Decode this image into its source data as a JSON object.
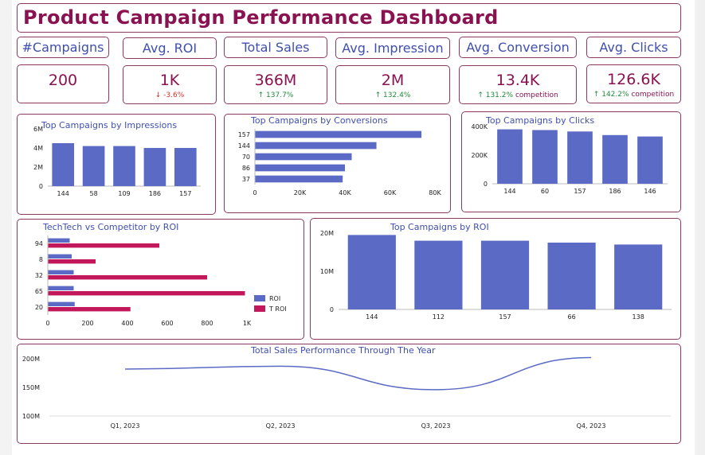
{
  "title": "Product Campaign Performance Dashboard",
  "colors": {
    "accent": "#8a1250",
    "bar": "#5b6ac4",
    "border": "#8d3a62",
    "up": "#1f8a3b",
    "down": "#d93025",
    "competitor": "#c2185b"
  },
  "kpis": [
    {
      "label": "#Campaigns",
      "value": "200",
      "delta": "",
      "direction": "",
      "suffix": ""
    },
    {
      "label": "Avg. ROI",
      "value": "1K",
      "delta": "-3.6%",
      "direction": "down",
      "suffix": ""
    },
    {
      "label": "Total Sales",
      "value": "366M",
      "delta": "137.7%",
      "direction": "up",
      "suffix": ""
    },
    {
      "label": "Avg. Impression",
      "value": "2M",
      "delta": "132.4%",
      "direction": "up",
      "suffix": ""
    },
    {
      "label": "Avg. Conversion",
      "value": "13.4K",
      "delta": "131.2%",
      "direction": "up",
      "suffix": "competition"
    },
    {
      "label": "Avg. Clicks",
      "value": "126.6K",
      "delta": "142.2%",
      "direction": "up",
      "suffix": "competition"
    }
  ],
  "chart_data": [
    {
      "id": "impressions",
      "type": "bar",
      "title": "Top Campaigns by Impressions",
      "categories": [
        "144",
        "58",
        "109",
        "186",
        "157"
      ],
      "values": [
        4500000,
        4200000,
        4200000,
        4000000,
        4000000
      ],
      "ylim": [
        0,
        6000000
      ],
      "yticks": [
        "0",
        "2M",
        "4M",
        "6M"
      ],
      "grid": false
    },
    {
      "id": "conversions",
      "type": "bar",
      "orientation": "horizontal",
      "title": "Top Campaigns by Conversions",
      "categories": [
        "157",
        "144",
        "70",
        "86",
        "37"
      ],
      "values": [
        74000,
        54000,
        43000,
        40000,
        39000
      ],
      "xlim": [
        0,
        80000
      ],
      "xticks": [
        "0",
        "20K",
        "40K",
        "60K",
        "80K"
      ],
      "grid": false
    },
    {
      "id": "clicks",
      "type": "bar",
      "title": "Top Campaigns by Clicks",
      "categories": [
        "144",
        "60",
        "157",
        "186",
        "146"
      ],
      "values": [
        380000,
        375000,
        365000,
        340000,
        330000
      ],
      "ylim": [
        0,
        400000
      ],
      "yticks": [
        "0",
        "200K",
        "400K"
      ],
      "grid": false
    },
    {
      "id": "roi_compare",
      "type": "bar",
      "orientation": "horizontal",
      "title": "TechTech vs Competitor by ROI",
      "categories": [
        "94",
        "8",
        "32",
        "65",
        "20"
      ],
      "series": [
        {
          "name": "ROI",
          "values": [
            110,
            120,
            130,
            130,
            135
          ]
        },
        {
          "name": "T ROI",
          "values": [
            560,
            240,
            800,
            990,
            415
          ]
        }
      ],
      "xlim": [
        0,
        1000
      ],
      "xticks": [
        "0",
        "200",
        "400",
        "600",
        "800",
        "1K"
      ],
      "legend": "bottom-right"
    },
    {
      "id": "top_roi",
      "type": "bar",
      "title": "Top Campaigns by ROI",
      "categories": [
        "144",
        "112",
        "157",
        "66",
        "138"
      ],
      "values": [
        19500000,
        18000000,
        18000000,
        17500000,
        17000000
      ],
      "ylim": [
        0,
        20000000
      ],
      "yticks": [
        "0",
        "10M",
        "20M"
      ],
      "grid": false
    },
    {
      "id": "sales_year",
      "type": "line",
      "title": "Total Sales Performance Through The Year",
      "categories": [
        "Q1, 2023",
        "Q2, 2023",
        "Q3, 2023",
        "Q4, 2023"
      ],
      "values": [
        182000000,
        187000000,
        146000000,
        202000000
      ],
      "ylim": [
        100000000,
        200000000
      ],
      "yticks": [
        "100M",
        "150M",
        "200M"
      ],
      "grid": false
    }
  ]
}
